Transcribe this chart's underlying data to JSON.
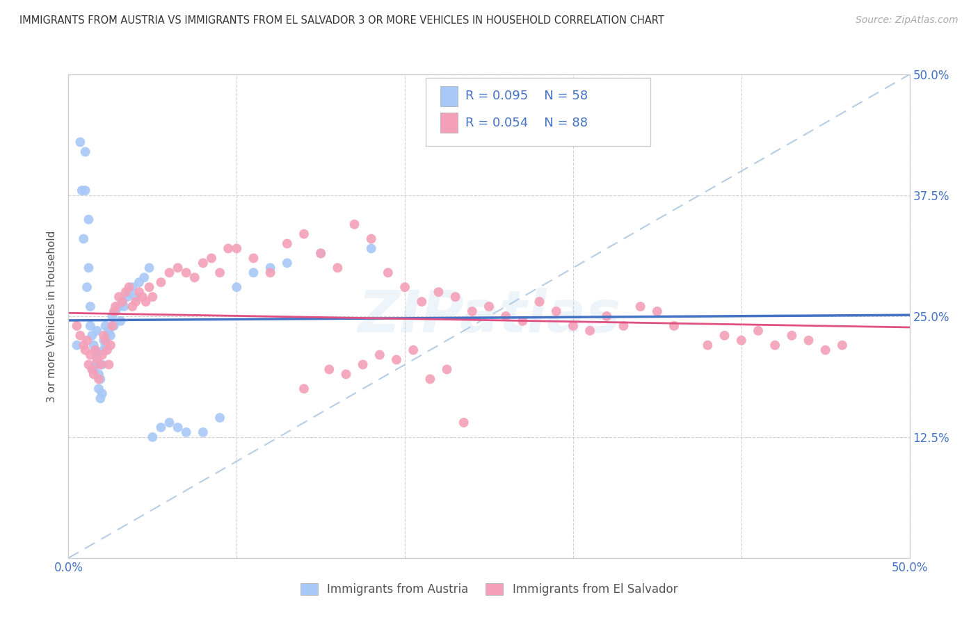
{
  "title": "IMMIGRANTS FROM AUSTRIA VS IMMIGRANTS FROM EL SALVADOR 3 OR MORE VEHICLES IN HOUSEHOLD CORRELATION CHART",
  "source": "Source: ZipAtlas.com",
  "ylabel": "3 or more Vehicles in Household",
  "xlim": [
    0.0,
    0.5
  ],
  "ylim": [
    0.0,
    0.5
  ],
  "austria_color": "#a8c8f8",
  "el_salvador_color": "#f4a0b8",
  "austria_line_color": "#4472c4",
  "el_salvador_line_color": "#e05080",
  "dash_line_color": "#b0c8e0",
  "austria_R": 0.095,
  "austria_N": 58,
  "el_salvador_R": 0.054,
  "el_salvador_N": 88,
  "legend_text_color": "#4472c4",
  "background_color": "#ffffff",
  "watermark": "ZIPatlas",
  "austria_x": [
    0.005,
    0.007,
    0.008,
    0.009,
    0.01,
    0.01,
    0.011,
    0.012,
    0.012,
    0.013,
    0.013,
    0.014,
    0.015,
    0.015,
    0.016,
    0.016,
    0.017,
    0.017,
    0.018,
    0.018,
    0.019,
    0.019,
    0.02,
    0.02,
    0.021,
    0.021,
    0.022,
    0.022,
    0.023,
    0.024,
    0.025,
    0.026,
    0.027,
    0.028,
    0.03,
    0.031,
    0.032,
    0.033,
    0.035,
    0.036,
    0.038,
    0.04,
    0.042,
    0.045,
    0.048,
    0.05,
    0.055,
    0.06,
    0.065,
    0.07,
    0.08,
    0.09,
    0.1,
    0.11,
    0.12,
    0.13,
    0.15,
    0.18
  ],
  "austria_y": [
    0.22,
    0.43,
    0.38,
    0.33,
    0.42,
    0.38,
    0.28,
    0.35,
    0.3,
    0.26,
    0.24,
    0.23,
    0.22,
    0.195,
    0.2,
    0.215,
    0.235,
    0.21,
    0.175,
    0.19,
    0.165,
    0.185,
    0.17,
    0.2,
    0.215,
    0.225,
    0.22,
    0.24,
    0.23,
    0.235,
    0.23,
    0.25,
    0.24,
    0.255,
    0.26,
    0.245,
    0.265,
    0.26,
    0.27,
    0.275,
    0.28,
    0.27,
    0.285,
    0.29,
    0.3,
    0.125,
    0.135,
    0.14,
    0.135,
    0.13,
    0.13,
    0.145,
    0.28,
    0.295,
    0.3,
    0.305,
    0.315,
    0.32
  ],
  "el_salvador_x": [
    0.005,
    0.007,
    0.009,
    0.01,
    0.011,
    0.012,
    0.013,
    0.014,
    0.015,
    0.016,
    0.017,
    0.018,
    0.019,
    0.02,
    0.021,
    0.022,
    0.023,
    0.024,
    0.025,
    0.026,
    0.027,
    0.028,
    0.03,
    0.032,
    0.034,
    0.036,
    0.038,
    0.04,
    0.042,
    0.044,
    0.046,
    0.048,
    0.05,
    0.055,
    0.06,
    0.065,
    0.07,
    0.075,
    0.08,
    0.085,
    0.09,
    0.095,
    0.1,
    0.11,
    0.12,
    0.13,
    0.14,
    0.15,
    0.16,
    0.17,
    0.18,
    0.19,
    0.2,
    0.21,
    0.22,
    0.23,
    0.24,
    0.25,
    0.26,
    0.27,
    0.28,
    0.29,
    0.3,
    0.31,
    0.32,
    0.33,
    0.34,
    0.35,
    0.36,
    0.38,
    0.39,
    0.4,
    0.41,
    0.42,
    0.43,
    0.44,
    0.45,
    0.46,
    0.14,
    0.155,
    0.165,
    0.175,
    0.185,
    0.195,
    0.205,
    0.215,
    0.225,
    0.235
  ],
  "el_salvador_y": [
    0.24,
    0.23,
    0.22,
    0.215,
    0.225,
    0.2,
    0.21,
    0.195,
    0.19,
    0.215,
    0.205,
    0.185,
    0.2,
    0.21,
    0.23,
    0.225,
    0.215,
    0.2,
    0.22,
    0.24,
    0.255,
    0.26,
    0.27,
    0.265,
    0.275,
    0.28,
    0.26,
    0.265,
    0.275,
    0.27,
    0.265,
    0.28,
    0.27,
    0.285,
    0.295,
    0.3,
    0.295,
    0.29,
    0.305,
    0.31,
    0.295,
    0.32,
    0.32,
    0.31,
    0.295,
    0.325,
    0.335,
    0.315,
    0.3,
    0.345,
    0.33,
    0.295,
    0.28,
    0.265,
    0.275,
    0.27,
    0.255,
    0.26,
    0.25,
    0.245,
    0.265,
    0.255,
    0.24,
    0.235,
    0.25,
    0.24,
    0.26,
    0.255,
    0.24,
    0.22,
    0.23,
    0.225,
    0.235,
    0.22,
    0.23,
    0.225,
    0.215,
    0.22,
    0.175,
    0.195,
    0.19,
    0.2,
    0.21,
    0.205,
    0.215,
    0.185,
    0.195,
    0.14
  ]
}
